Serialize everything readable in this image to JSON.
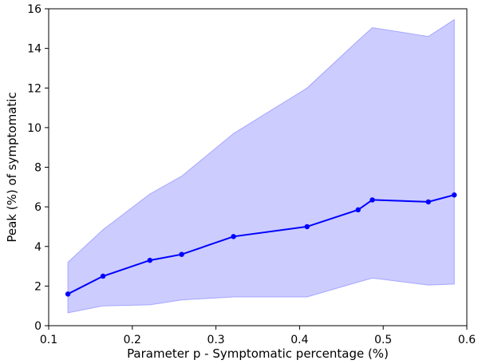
{
  "chart_data": {
    "type": "line",
    "title": "",
    "xlabel": "Parameter p - Symptomatic percentage (%)",
    "ylabel": "Peak (%) of symptomatic",
    "xlim": [
      0.1,
      0.6
    ],
    "ylim": [
      0,
      16
    ],
    "xticks": [
      0.1,
      0.2,
      0.3,
      0.4,
      0.5,
      0.6
    ],
    "xtick_labels": [
      "0.1",
      "0.2",
      "0.3",
      "0.4",
      "0.5",
      "0.6"
    ],
    "yticks": [
      0,
      2,
      4,
      6,
      8,
      10,
      12,
      14,
      16
    ],
    "ytick_labels": [
      "0",
      "2",
      "4",
      "6",
      "8",
      "10",
      "12",
      "14",
      "16"
    ],
    "grid": false,
    "legend": "none",
    "colors": {
      "line": "#0000ff",
      "band": "#8080ff"
    },
    "series": [
      {
        "x": [
          0.123,
          0.165,
          0.221,
          0.259,
          0.321,
          0.409,
          0.47,
          0.487,
          0.554,
          0.585
        ],
        "values": [
          1.6,
          2.5,
          3.3,
          3.6,
          4.5,
          5.0,
          5.85,
          6.35,
          6.25,
          6.6
        ],
        "lower": [
          0.65,
          1.0,
          1.05,
          1.3,
          1.45,
          1.45,
          2.2,
          2.4,
          2.05,
          2.1
        ],
        "upper": [
          3.2,
          4.85,
          6.65,
          7.55,
          9.7,
          12.0,
          14.4,
          15.05,
          14.6,
          15.45
        ]
      }
    ]
  }
}
